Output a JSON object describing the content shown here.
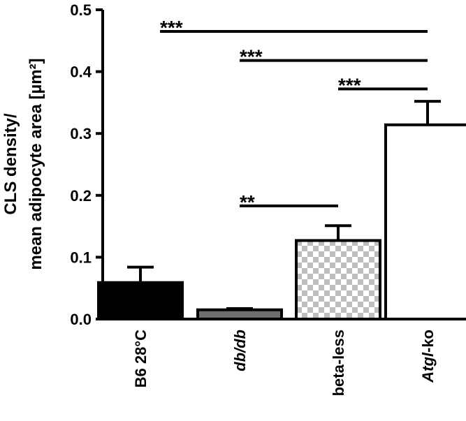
{
  "chart_data": {
    "type": "bar",
    "ylabel_line1": "CLS density/",
    "ylabel_line2": "mean adipocyte area [µm²]",
    "ylim": [
      0,
      0.5
    ],
    "yticks": [
      "0.0",
      "0.1",
      "0.2",
      "0.3",
      "0.4",
      "0.5"
    ],
    "ytick_values": [
      0,
      0.1,
      0.2,
      0.3,
      0.4,
      0.5
    ],
    "categories": [
      {
        "label": "B6 28°C",
        "italic_part": "",
        "rest": "B6 28°C"
      },
      {
        "label": "db/db",
        "italic_part": "db/db",
        "rest": ""
      },
      {
        "label": "beta-less",
        "italic_part": "",
        "rest": "beta-less"
      },
      {
        "label": "Atgl-ko",
        "italic_part": "Atgl",
        "rest": "-ko"
      }
    ],
    "values": [
      0.059,
      0.015,
      0.127,
      0.314
    ],
    "errors": [
      0.025,
      0.002,
      0.024,
      0.038
    ],
    "bar_fills": [
      "solid-black",
      "solid-gray",
      "checkerboard",
      "white"
    ],
    "significance": [
      {
        "from": 0,
        "to": 3,
        "y": 0.465,
        "label": "***"
      },
      {
        "from": 1,
        "to": 3,
        "y": 0.418,
        "label": "***"
      },
      {
        "from": 2,
        "to": 3,
        "y": 0.372,
        "label": "***"
      },
      {
        "from": 1,
        "to": 2,
        "y": 0.183,
        "label": "**"
      }
    ]
  }
}
